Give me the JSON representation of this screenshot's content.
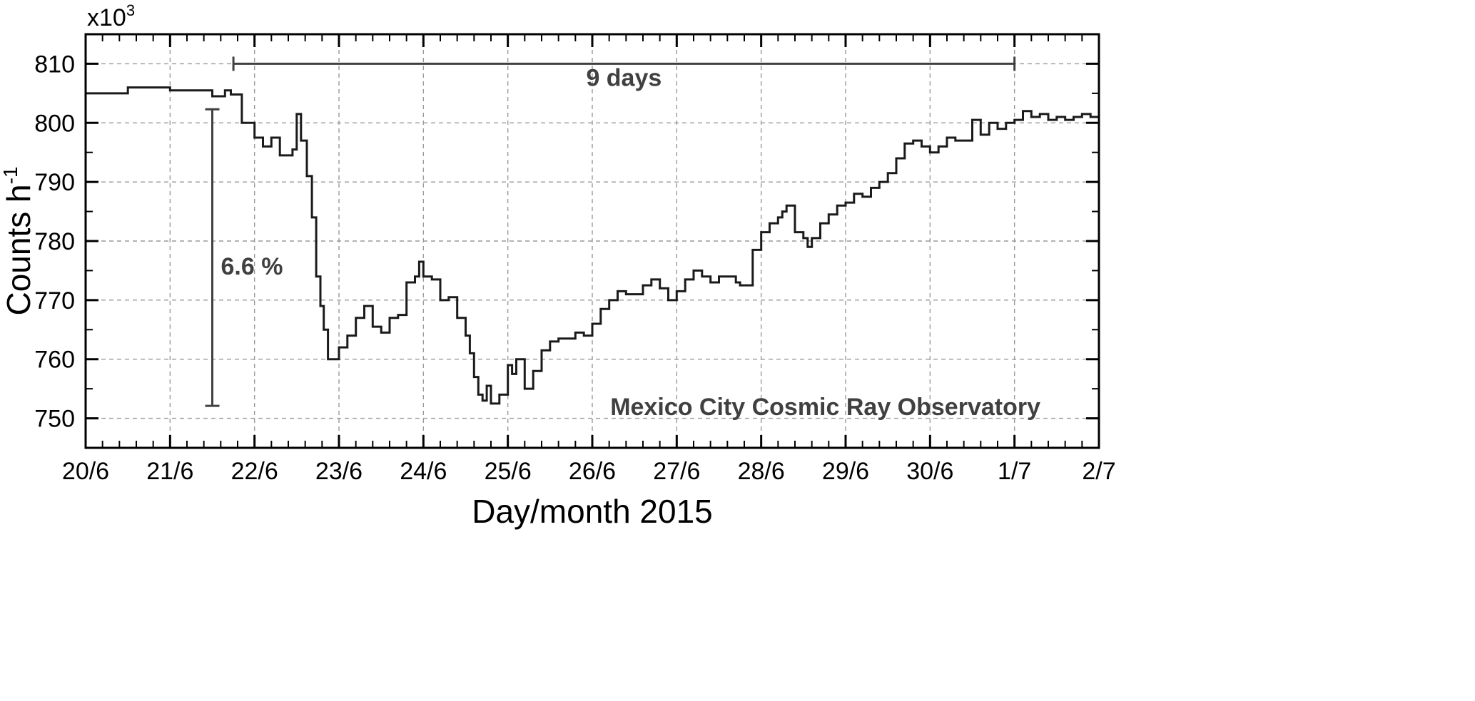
{
  "chart_data": {
    "type": "line",
    "step": true,
    "xlabel": "Day/month 2015",
    "ylabel": "Counts h",
    "ylabel_superscript": "-1",
    "y_multiplier_base": "x10",
    "y_multiplier_exp": "3",
    "xlim": [
      0,
      12
    ],
    "ylim": [
      745,
      815
    ],
    "x_tick_labels": [
      "20/6",
      "21/6",
      "22/6",
      "23/6",
      "24/6",
      "25/6",
      "26/6",
      "27/6",
      "28/6",
      "29/6",
      "30/6",
      "1/7",
      "2/7"
    ],
    "y_ticks": [
      750,
      760,
      770,
      780,
      790,
      800,
      810
    ],
    "grid": true,
    "series": [
      {
        "color": "#1a1a1a",
        "points": [
          [
            0.0,
            805.0
          ],
          [
            0.5,
            806.0
          ],
          [
            1.0,
            805.5
          ],
          [
            1.5,
            804.5
          ],
          [
            1.65,
            805.5
          ],
          [
            1.72,
            804.8
          ],
          [
            1.85,
            800.0
          ],
          [
            2.0,
            797.5
          ],
          [
            2.1,
            796.0
          ],
          [
            2.2,
            797.5
          ],
          [
            2.3,
            794.5
          ],
          [
            2.45,
            795.5
          ],
          [
            2.5,
            801.5
          ],
          [
            2.55,
            797.0
          ],
          [
            2.62,
            791.0
          ],
          [
            2.68,
            784.0
          ],
          [
            2.73,
            774.0
          ],
          [
            2.78,
            769.0
          ],
          [
            2.82,
            765.0
          ],
          [
            2.87,
            760.0
          ],
          [
            3.0,
            762.0
          ],
          [
            3.1,
            764.0
          ],
          [
            3.2,
            767.0
          ],
          [
            3.3,
            769.0
          ],
          [
            3.4,
            765.5
          ],
          [
            3.5,
            764.5
          ],
          [
            3.6,
            767.0
          ],
          [
            3.7,
            767.5
          ],
          [
            3.8,
            773.0
          ],
          [
            3.9,
            774.0
          ],
          [
            3.95,
            776.5
          ],
          [
            4.0,
            774.0
          ],
          [
            4.1,
            773.5
          ],
          [
            4.2,
            770.0
          ],
          [
            4.3,
            770.5
          ],
          [
            4.4,
            767.0
          ],
          [
            4.5,
            764.0
          ],
          [
            4.55,
            761.0
          ],
          [
            4.6,
            757.0
          ],
          [
            4.65,
            754.0
          ],
          [
            4.7,
            753.0
          ],
          [
            4.75,
            755.5
          ],
          [
            4.8,
            752.5
          ],
          [
            4.9,
            754.0
          ],
          [
            5.0,
            759.0
          ],
          [
            5.05,
            757.5
          ],
          [
            5.1,
            760.0
          ],
          [
            5.2,
            755.0
          ],
          [
            5.3,
            758.0
          ],
          [
            5.4,
            761.5
          ],
          [
            5.5,
            763.0
          ],
          [
            5.6,
            763.5
          ],
          [
            5.8,
            764.5
          ],
          [
            5.9,
            764.0
          ],
          [
            6.0,
            766.0
          ],
          [
            6.1,
            768.5
          ],
          [
            6.2,
            770.0
          ],
          [
            6.3,
            771.5
          ],
          [
            6.4,
            771.0
          ],
          [
            6.5,
            771.0
          ],
          [
            6.6,
            772.5
          ],
          [
            6.7,
            773.5
          ],
          [
            6.8,
            772.0
          ],
          [
            6.9,
            770.0
          ],
          [
            7.0,
            771.5
          ],
          [
            7.1,
            773.5
          ],
          [
            7.2,
            775.0
          ],
          [
            7.3,
            774.0
          ],
          [
            7.4,
            773.0
          ],
          [
            7.5,
            774.0
          ],
          [
            7.6,
            774.0
          ],
          [
            7.7,
            773.0
          ],
          [
            7.75,
            772.5
          ],
          [
            7.8,
            772.5
          ],
          [
            7.85,
            772.5
          ],
          [
            7.9,
            778.5
          ],
          [
            8.0,
            781.5
          ],
          [
            8.1,
            783.0
          ],
          [
            8.2,
            784.0
          ],
          [
            8.25,
            785.0
          ],
          [
            8.3,
            786.0
          ],
          [
            8.4,
            781.5
          ],
          [
            8.5,
            780.5
          ],
          [
            8.55,
            779.0
          ],
          [
            8.6,
            780.5
          ],
          [
            8.7,
            783.0
          ],
          [
            8.8,
            784.5
          ],
          [
            8.9,
            786.0
          ],
          [
            9.0,
            786.5
          ],
          [
            9.1,
            788.0
          ],
          [
            9.2,
            787.5
          ],
          [
            9.3,
            789.0
          ],
          [
            9.4,
            790.0
          ],
          [
            9.5,
            791.5
          ],
          [
            9.6,
            794.0
          ],
          [
            9.7,
            796.5
          ],
          [
            9.8,
            797.0
          ],
          [
            9.9,
            796.0
          ],
          [
            10.0,
            795.0
          ],
          [
            10.1,
            796.0
          ],
          [
            10.2,
            797.5
          ],
          [
            10.3,
            797.0
          ],
          [
            10.4,
            797.0
          ],
          [
            10.5,
            800.5
          ],
          [
            10.6,
            798.0
          ],
          [
            10.7,
            800.0
          ],
          [
            10.8,
            799.0
          ],
          [
            10.9,
            800.0
          ],
          [
            11.0,
            800.5
          ],
          [
            11.1,
            802.0
          ],
          [
            11.2,
            801.0
          ],
          [
            11.3,
            801.5
          ],
          [
            11.4,
            800.5
          ],
          [
            11.5,
            801.0
          ],
          [
            11.6,
            800.5
          ],
          [
            11.7,
            801.0
          ],
          [
            11.8,
            801.5
          ],
          [
            11.9,
            801.0
          ],
          [
            12.0,
            801.5
          ]
        ]
      }
    ],
    "annotations": {
      "duration_label": "9 days",
      "duration_start_x": 1.75,
      "duration_end_x": 11.0,
      "duration_y": 810,
      "decrease_label": "6.6 %",
      "decrease_x": 1.5,
      "decrease_y_top": 802.3,
      "decrease_y_bottom": 752.1,
      "observatory_label": "Mexico City Cosmic Ray Observatory"
    }
  }
}
